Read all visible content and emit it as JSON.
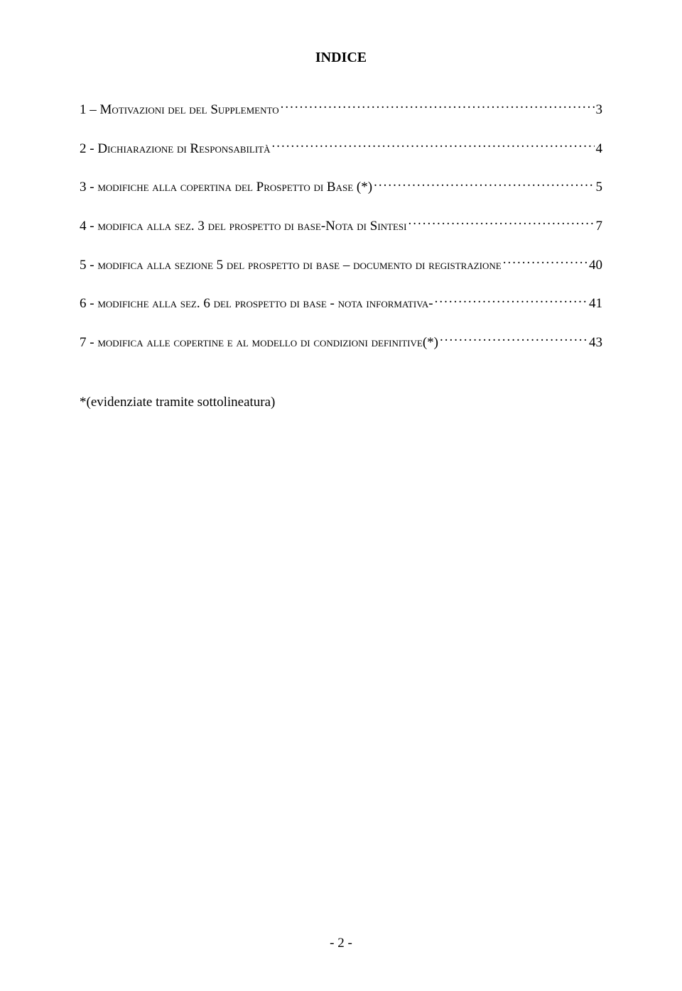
{
  "title": "INDICE",
  "entries": [
    {
      "prefix": "1 – ",
      "text_sc": "Motivazioni del del Supplemento",
      "text_plain": "",
      "page": "3"
    },
    {
      "prefix": "2 - ",
      "text_sc": "Dichiarazione di Responsabilità",
      "text_plain": "",
      "page": "4"
    },
    {
      "prefix": "3 - ",
      "text_sc": "modifiche  alla copertina del Prospetto di Base (*)",
      "text_plain": "",
      "page": "5"
    },
    {
      "prefix": "4 - ",
      "text_sc": "modifica  alla  sez. 3 del prospetto di base-Nota di Sintesi ",
      "text_plain": "",
      "page": "7"
    },
    {
      "prefix": "5 - ",
      "text_sc": "modifica alla sezione 5 del prospetto di base – documento di registrazione",
      "text_plain": "",
      "page": "40"
    },
    {
      "prefix": "6 - ",
      "text_sc": "modifiche  alla sez. 6 del prospetto di base - nota informativa- ",
      "text_plain": "",
      "page": "41"
    },
    {
      "prefix": "7 - ",
      "text_sc": "modifica  alle copertine  e al modello di condizioni definitive(*)",
      "text_plain": "",
      "page": "43"
    }
  ],
  "footnote": "*(evidenziate tramite sottolineatura)",
  "page_number": "- 2 -",
  "colors": {
    "background": "#ffffff",
    "text": "#000000"
  },
  "fonts": {
    "family": "Times New Roman",
    "title_size_pt": 20,
    "body_size_pt": 19
  }
}
